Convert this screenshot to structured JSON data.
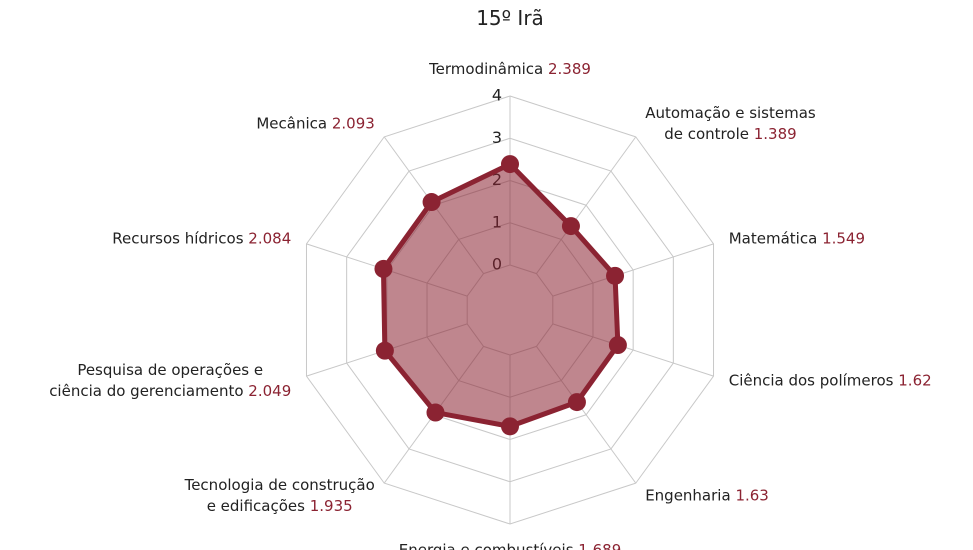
{
  "chart_data": {
    "type": "radar",
    "title": "15º Irã",
    "categories": [
      "Termodinâmica",
      "Automação e sistemas\nde controle",
      "Matemática",
      "Ciência dos polímeros",
      "Engenharia",
      "Energia e combustíveis",
      "Tecnologia de construção\ne edificações",
      "Pesquisa de operações e\nciência do gerenciamento",
      "Recursos hídricos",
      "Mecânica"
    ],
    "values": [
      2.389,
      1.389,
      1.549,
      1.62,
      1.63,
      1.689,
      1.935,
      2.049,
      2.084,
      2.093
    ],
    "color": "#8b2332",
    "ylim": [
      0,
      4
    ],
    "yticks": [
      0,
      1,
      2,
      3,
      4
    ],
    "grid": true
  }
}
